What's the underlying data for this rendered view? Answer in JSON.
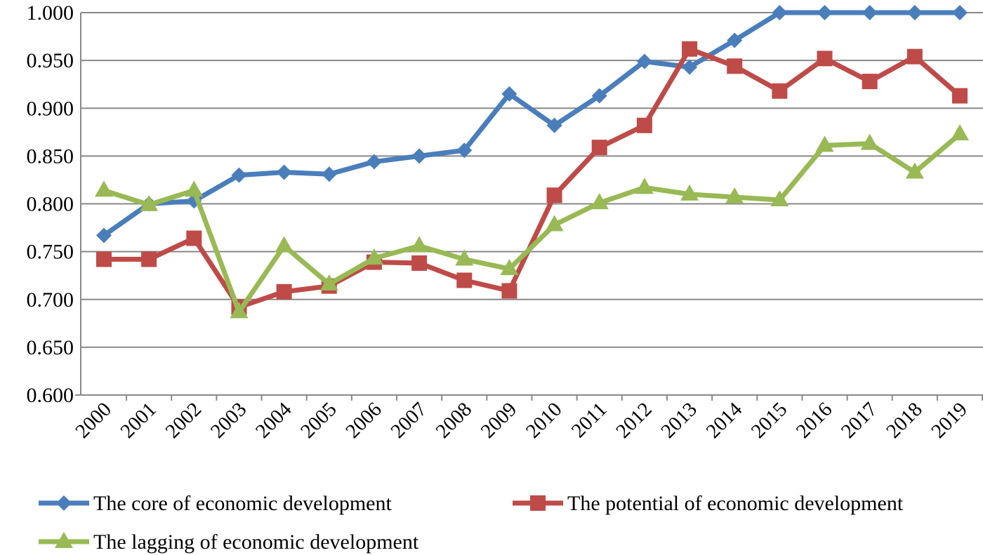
{
  "chart_data": {
    "type": "line",
    "title": "",
    "xlabel": "",
    "ylabel": "",
    "ylim": [
      0.6,
      1.0
    ],
    "yticks": [
      "0.600",
      "0.650",
      "0.700",
      "0.750",
      "0.800",
      "0.850",
      "0.900",
      "0.950",
      "1.000"
    ],
    "grid": true,
    "legend_position": "bottom",
    "x": [
      "2000",
      "2001",
      "2002",
      "2003",
      "2004",
      "2005",
      "2006",
      "2007",
      "2008",
      "2009",
      "2010",
      "2011",
      "2012",
      "2013",
      "2014",
      "2015",
      "2016",
      "2017",
      "2018",
      "2019"
    ],
    "series": [
      {
        "name": "The core of economic development",
        "color": "#4a7ebb",
        "marker": "diamond",
        "values": [
          0.767,
          0.8,
          0.803,
          0.83,
          0.833,
          0.831,
          0.844,
          0.85,
          0.856,
          0.915,
          0.882,
          0.913,
          0.949,
          0.943,
          0.971,
          1.0,
          1.0,
          1.0,
          1.0,
          1.0
        ]
      },
      {
        "name": "The potential of economic development",
        "color": "#be4b48",
        "marker": "square",
        "values": [
          0.742,
          0.742,
          0.764,
          0.692,
          0.708,
          0.714,
          0.739,
          0.738,
          0.72,
          0.709,
          0.809,
          0.859,
          0.882,
          0.962,
          0.944,
          0.918,
          0.952,
          0.928,
          0.954,
          0.913
        ]
      },
      {
        "name": "The lagging of economic development",
        "color": "#98b954",
        "marker": "triangle",
        "values": [
          0.814,
          0.799,
          0.814,
          0.687,
          0.756,
          0.716,
          0.743,
          0.756,
          0.742,
          0.732,
          0.778,
          0.801,
          0.817,
          0.81,
          0.807,
          0.804,
          0.861,
          0.863,
          0.833,
          0.873
        ]
      }
    ]
  }
}
